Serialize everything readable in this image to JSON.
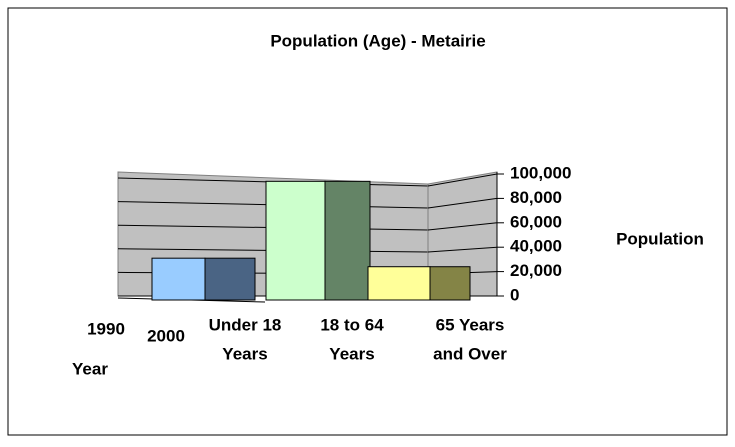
{
  "chart_data": {
    "type": "bar",
    "title": "Population (Age) - Metairie",
    "categories": [
      [
        "Under 18",
        "Years"
      ],
      [
        "18 to 64",
        "Years"
      ],
      [
        "65 Years",
        "and Over"
      ]
    ],
    "values": [
      31000,
      94000,
      24000
    ],
    "colors": [
      "#99ccff",
      "#ccffcc",
      "#ffff99"
    ],
    "side_colors": [
      "#4a6484",
      "#648466",
      "#848446"
    ],
    "depth_labels": [
      "1990",
      "2000"
    ],
    "depth_axis_label": "Year",
    "y_axis_label": "Population",
    "ylim": [
      0,
      100000
    ],
    "yticks": [
      0,
      {
        "value": 20000,
        "label": "20,000"
      },
      {
        "value": 40000,
        "label": "40,000"
      },
      {
        "value": 60000,
        "label": "60,000"
      },
      {
        "value": 80000,
        "label": "80,000"
      },
      {
        "value": 100000,
        "label": "100,000"
      }
    ],
    "grid": true
  }
}
